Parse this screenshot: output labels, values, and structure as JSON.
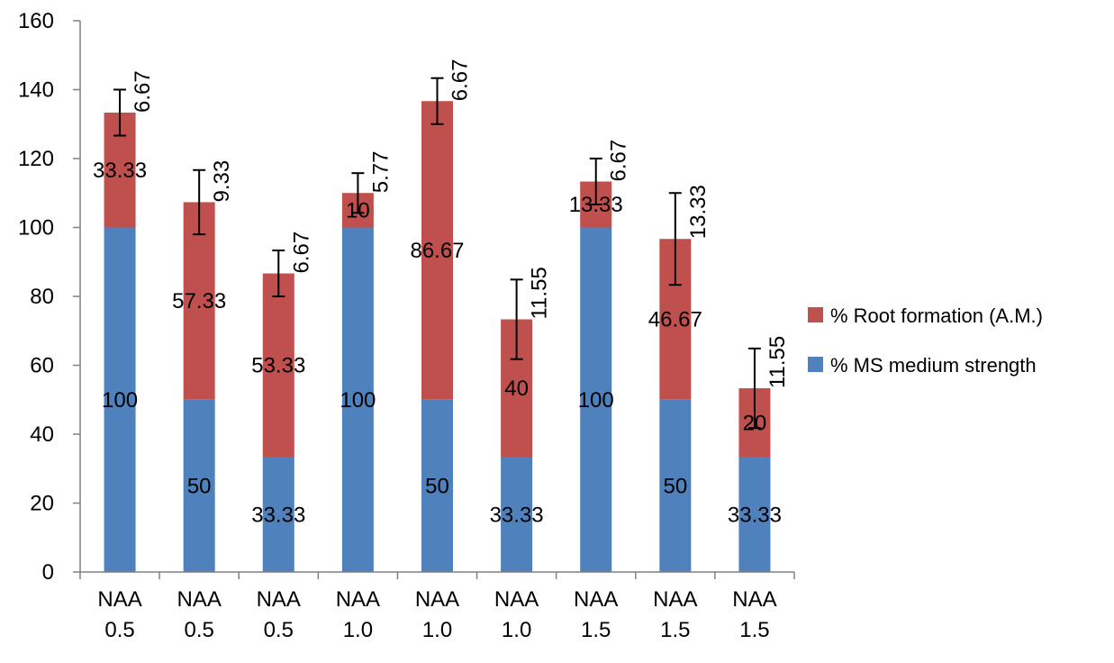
{
  "chart_data": {
    "type": "bar",
    "stacked": true,
    "categories": [
      [
        "NAA",
        "0.5"
      ],
      [
        "NAA",
        "0.5"
      ],
      [
        "NAA",
        "0.5"
      ],
      [
        "NAA",
        "1.0"
      ],
      [
        "NAA",
        "1.0"
      ],
      [
        "NAA",
        "1.0"
      ],
      [
        "NAA",
        "1.5"
      ],
      [
        "NAA",
        "1.5"
      ],
      [
        "NAA",
        "1.5"
      ]
    ],
    "series": [
      {
        "name": "% MS medium strength",
        "color": "#4f81bd",
        "values": [
          100,
          50,
          33.33,
          100,
          50,
          33.33,
          100,
          50,
          33.33
        ],
        "labels": [
          "100",
          "50",
          "33.33",
          "100",
          "50",
          "33.33",
          "100",
          "50",
          "33.33"
        ]
      },
      {
        "name": "% Root formation (A.M.)",
        "color": "#c0504d",
        "values": [
          33.33,
          57.33,
          53.33,
          10,
          86.67,
          40,
          13.33,
          46.67,
          20
        ],
        "labels": [
          "33.33",
          "57.33",
          "53.33",
          "10",
          "86.67",
          "40",
          "13.33",
          "46.67",
          "20"
        ]
      }
    ],
    "error_bars": {
      "values": [
        6.67,
        9.33,
        6.67,
        5.77,
        6.67,
        11.55,
        6.67,
        13.33,
        11.55
      ],
      "labels": [
        "6.67",
        "9.33",
        "6.67",
        "5.77",
        "6.67",
        "11.55",
        "6.67",
        "13.33",
        "11.55"
      ]
    },
    "ylim": [
      0,
      160
    ],
    "yticks": [
      "0",
      "20",
      "40",
      "60",
      "80",
      "100",
      "120",
      "140",
      "160"
    ],
    "title": "",
    "xlabel": "",
    "ylabel": "",
    "legend": "right",
    "grid": false
  }
}
